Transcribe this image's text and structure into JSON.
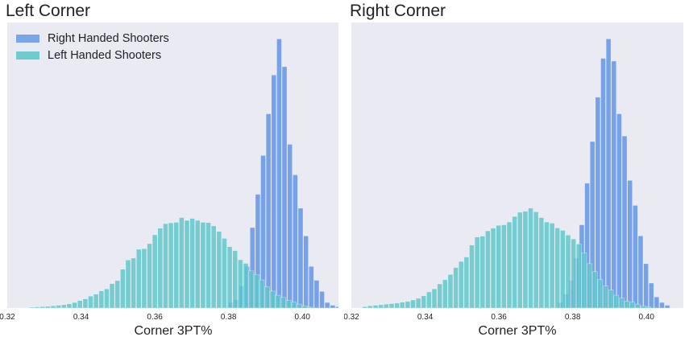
{
  "colors": {
    "right_handed": "#6495e6",
    "left_handed": "#5dc6c9",
    "overlap": "#3aa3c8",
    "plot_bg": "#e9eaf2"
  },
  "chart_data": [
    {
      "type": "histogram",
      "title": "Left Corner",
      "xlabel": "Corner 3PT%",
      "ylabel": "",
      "xlim": [
        0.32,
        0.41
      ],
      "ylim": [
        0,
        1
      ],
      "grid": false,
      "x_ticks": [
        "0.32",
        "0.34",
        "0.36",
        "0.38",
        "0.40"
      ],
      "legend": {
        "placement": "top-left",
        "entries": [
          "Right Handed Shooters",
          "Left Handed Shooters"
        ]
      },
      "series": [
        {
          "name": "Right Handed Shooters",
          "bin_start": 0.38,
          "bin_width": 0.00145,
          "values": [
            0.02,
            0.03,
            0.08,
            0.15,
            0.29,
            0.41,
            0.55,
            0.7,
            0.84,
            0.97,
            0.87,
            0.59,
            0.48,
            0.36,
            0.26,
            0.15,
            0.1,
            0.06,
            0.02,
            0.01,
            0.005
          ]
        },
        {
          "name": "Left Handed Shooters",
          "bin_start": 0.326,
          "bin_width": 0.00145,
          "values": [
            0.003,
            0.004,
            0.005,
            0.006,
            0.008,
            0.01,
            0.012,
            0.015,
            0.02,
            0.027,
            0.033,
            0.043,
            0.05,
            0.062,
            0.069,
            0.088,
            0.099,
            0.14,
            0.173,
            0.18,
            0.212,
            0.214,
            0.232,
            0.264,
            0.288,
            0.304,
            0.307,
            0.309,
            0.326,
            0.316,
            0.323,
            0.316,
            0.309,
            0.308,
            0.296,
            0.276,
            0.251,
            0.221,
            0.207,
            0.174,
            0.161,
            0.134,
            0.121,
            0.101,
            0.076,
            0.061,
            0.046,
            0.038,
            0.027,
            0.021,
            0.014,
            0.008,
            0.003
          ]
        }
      ]
    },
    {
      "type": "histogram",
      "title": "Right Corner",
      "xlabel": "Corner 3PT%",
      "ylabel": "",
      "xlim": [
        0.32,
        0.41
      ],
      "ylim": [
        0,
        1
      ],
      "grid": false,
      "x_ticks": [
        "0.32",
        "0.34",
        "0.36",
        "0.38",
        "0.40"
      ],
      "series": [
        {
          "name": "Right Handed Shooters",
          "bin_start": 0.376,
          "bin_width": 0.00145,
          "values": [
            0.02,
            0.05,
            0.1,
            0.18,
            0.3,
            0.45,
            0.6,
            0.76,
            0.9,
            0.97,
            0.89,
            0.7,
            0.62,
            0.46,
            0.37,
            0.26,
            0.16,
            0.09,
            0.04,
            0.02,
            0.01
          ]
        },
        {
          "name": "Left Handed Shooters",
          "bin_start": 0.323,
          "bin_width": 0.00145,
          "values": [
            0.005,
            0.008,
            0.01,
            0.012,
            0.014,
            0.016,
            0.018,
            0.021,
            0.024,
            0.029,
            0.035,
            0.044,
            0.058,
            0.069,
            0.087,
            0.102,
            0.121,
            0.146,
            0.168,
            0.184,
            0.227,
            0.256,
            0.259,
            0.278,
            0.288,
            0.298,
            0.3,
            0.31,
            0.33,
            0.345,
            0.349,
            0.36,
            0.347,
            0.326,
            0.31,
            0.306,
            0.289,
            0.28,
            0.263,
            0.249,
            0.231,
            0.199,
            0.16,
            0.131,
            0.103,
            0.08,
            0.065,
            0.046,
            0.036,
            0.025,
            0.021,
            0.014,
            0.008,
            0.004
          ]
        }
      ]
    }
  ]
}
